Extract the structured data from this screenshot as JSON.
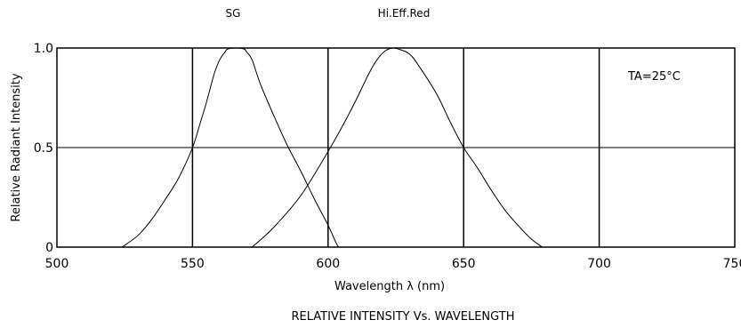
{
  "chart_data": {
    "type": "line",
    "title": "RELATIVE INTENSITY Vs. WAVELENGTH",
    "xlabel": "Wavelength λ (nm)",
    "ylabel": "Relative Radiant Intensity",
    "xlim": [
      500,
      750
    ],
    "ylim": [
      0,
      1.0
    ],
    "x_ticks": [
      500,
      550,
      600,
      650,
      700,
      750
    ],
    "x_tick_labels": [
      "500",
      "550",
      "600",
      "650",
      "700",
      "750"
    ],
    "y_ticks": [
      0,
      0.5,
      1.0
    ],
    "y_tick_labels": [
      "0",
      "0.5",
      "1.0"
    ],
    "grid_x": [
      550,
      600,
      650,
      700
    ],
    "reference_y": 0.5,
    "annotation": "TA=25°C",
    "series": [
      {
        "name": "SG",
        "color": "#000000",
        "points": [
          [
            524,
            0
          ],
          [
            530,
            0.06
          ],
          [
            535,
            0.14
          ],
          [
            540,
            0.24
          ],
          [
            545,
            0.35
          ],
          [
            550,
            0.5
          ],
          [
            553,
            0.63
          ],
          [
            555,
            0.72
          ],
          [
            558,
            0.87
          ],
          [
            560,
            0.94
          ],
          [
            562,
            0.98
          ],
          [
            563,
            0.995
          ],
          [
            566,
            1.0
          ],
          [
            569,
            0.995
          ],
          [
            570,
            0.98
          ],
          [
            572,
            0.94
          ],
          [
            575,
            0.82
          ],
          [
            580,
            0.66
          ],
          [
            585,
            0.51
          ],
          [
            590,
            0.38
          ],
          [
            595,
            0.24
          ],
          [
            600,
            0.11
          ],
          [
            603,
            0.02
          ],
          [
            604,
            0
          ]
        ]
      },
      {
        "name": "Hi.Eff.Red",
        "color": "#000000",
        "points": [
          [
            572,
            0
          ],
          [
            580,
            0.1
          ],
          [
            590,
            0.26
          ],
          [
            600,
            0.48
          ],
          [
            605,
            0.6
          ],
          [
            610,
            0.73
          ],
          [
            615,
            0.87
          ],
          [
            618,
            0.94
          ],
          [
            621,
            0.985
          ],
          [
            624,
            1.0
          ],
          [
            627,
            0.99
          ],
          [
            630,
            0.97
          ],
          [
            633,
            0.92
          ],
          [
            640,
            0.77
          ],
          [
            645,
            0.63
          ],
          [
            650,
            0.5
          ],
          [
            655,
            0.4
          ],
          [
            660,
            0.29
          ],
          [
            665,
            0.19
          ],
          [
            670,
            0.11
          ],
          [
            675,
            0.04
          ],
          [
            679,
            0
          ]
        ]
      }
    ]
  }
}
